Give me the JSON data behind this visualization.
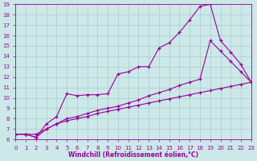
{
  "bg_color": "#cce8e8",
  "line_color": "#990099",
  "grid_color": "#aacccc",
  "xlabel": "Windchill (Refroidissement éolien,°C)",
  "xlim": [
    0,
    23
  ],
  "ylim": [
    6,
    19
  ],
  "xticks": [
    0,
    1,
    2,
    3,
    4,
    5,
    6,
    7,
    8,
    9,
    10,
    11,
    12,
    13,
    14,
    15,
    16,
    17,
    18,
    19,
    20,
    21,
    22,
    23
  ],
  "yticks": [
    6,
    7,
    8,
    9,
    10,
    11,
    12,
    13,
    14,
    15,
    16,
    17,
    18,
    19
  ],
  "line1_x": [
    0,
    1,
    2,
    3,
    4,
    5,
    6,
    7,
    8,
    9,
    10,
    11,
    12,
    13,
    14,
    15,
    16,
    17,
    18,
    19,
    20,
    21,
    22,
    23
  ],
  "line1_y": [
    6.5,
    6.5,
    6.2,
    7.5,
    8.2,
    10.4,
    10.2,
    10.3,
    10.3,
    10.4,
    12.3,
    12.5,
    13.0,
    13.0,
    14.8,
    15.3,
    16.3,
    17.5,
    18.8,
    19.0,
    15.5,
    14.4,
    13.2,
    11.5
  ],
  "line2_x": [
    0,
    1,
    2,
    3,
    4,
    5,
    6,
    7,
    8,
    9,
    10,
    11,
    12,
    13,
    14,
    15,
    16,
    17,
    18,
    19,
    20,
    21,
    22,
    23
  ],
  "line2_y": [
    6.5,
    6.5,
    6.5,
    7.0,
    7.5,
    8.0,
    8.2,
    8.5,
    8.8,
    9.0,
    9.2,
    9.5,
    9.8,
    10.2,
    10.5,
    10.8,
    11.2,
    11.5,
    11.8,
    15.5,
    14.5,
    13.5,
    12.5,
    11.5
  ],
  "line3_x": [
    0,
    1,
    2,
    3,
    4,
    5,
    6,
    7,
    8,
    9,
    10,
    11,
    12,
    13,
    14,
    15,
    16,
    17,
    18,
    19,
    20,
    21,
    22,
    23
  ],
  "line3_y": [
    6.5,
    6.5,
    6.2,
    7.0,
    7.5,
    7.8,
    8.0,
    8.2,
    8.5,
    8.7,
    8.9,
    9.1,
    9.3,
    9.5,
    9.7,
    9.9,
    10.1,
    10.3,
    10.5,
    10.7,
    10.9,
    11.1,
    11.3,
    11.5
  ]
}
